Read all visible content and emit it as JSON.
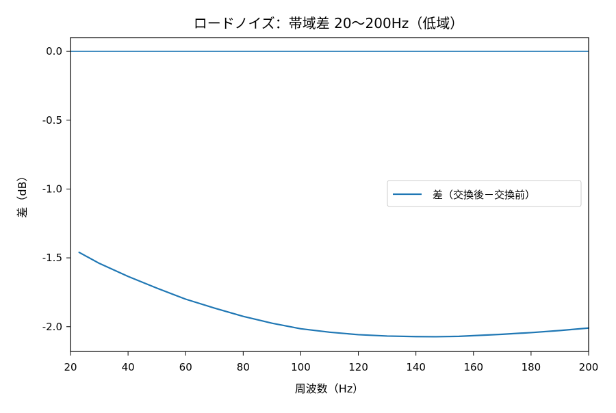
{
  "chart_data": {
    "type": "line",
    "title": "ロードノイズ：帯域差 20〜200Hz（低域）",
    "xlabel": "周波数（Hz）",
    "ylabel": "差（dB）",
    "xlim": [
      20,
      200
    ],
    "ylim": [
      -2.18,
      0.1
    ],
    "xticks": [
      20,
      40,
      60,
      80,
      100,
      120,
      140,
      160,
      180,
      200
    ],
    "xtick_labels": [
      "20",
      "40",
      "60",
      "80",
      "100",
      "120",
      "140",
      "160",
      "180",
      "200"
    ],
    "yticks": [
      0.0,
      -0.5,
      -1.0,
      -1.5,
      -2.0
    ],
    "ytick_labels": [
      "0.0",
      "-0.5",
      "-1.0",
      "-1.5",
      "-2.0"
    ],
    "grid": false,
    "legend_position": "center-right",
    "reference_line": {
      "y": 0.0,
      "color": "#1f77b4"
    },
    "series": [
      {
        "name": "差（交換後－交換前）",
        "color": "#1f77b4",
        "x": [
          23,
          30,
          40,
          50,
          60,
          70,
          80,
          90,
          100,
          110,
          120,
          130,
          140,
          147,
          155,
          160,
          170,
          180,
          190,
          200
        ],
        "y": [
          -1.46,
          -1.54,
          -1.635,
          -1.72,
          -1.8,
          -1.865,
          -1.925,
          -1.975,
          -2.015,
          -2.04,
          -2.058,
          -2.068,
          -2.072,
          -2.073,
          -2.07,
          -2.065,
          -2.055,
          -2.043,
          -2.028,
          -2.01
        ]
      }
    ]
  }
}
